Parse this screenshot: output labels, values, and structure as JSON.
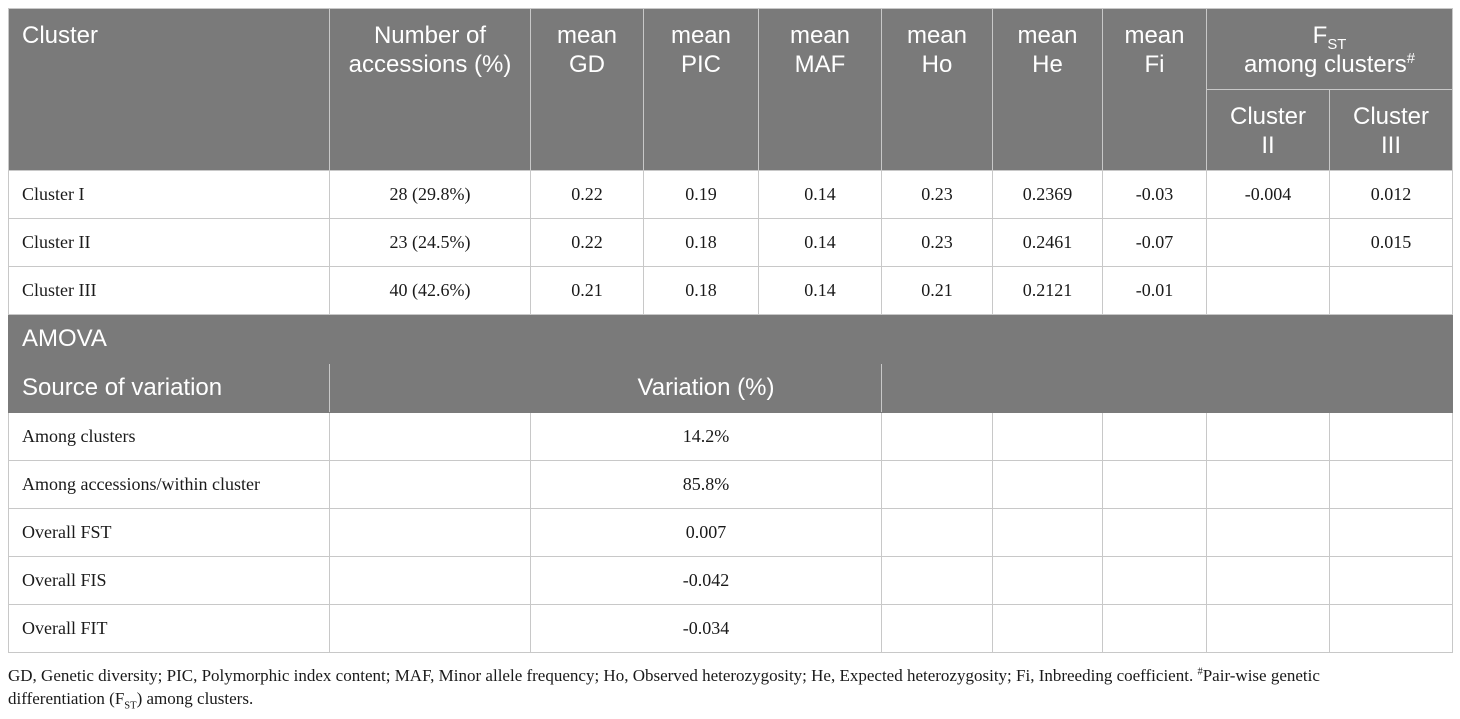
{
  "header": {
    "cluster": "Cluster",
    "accessions_l1": "Number of",
    "accessions_l2": "accessions (%)",
    "gd_l1": "mean",
    "gd_l2": "GD",
    "pic_l1": "mean",
    "pic_l2": "PIC",
    "maf_l1": "mean",
    "maf_l2": "MAF",
    "ho_l1": "mean",
    "ho_l2": "Ho",
    "he_l1": "mean",
    "he_l2": "He",
    "fi_l1": "mean",
    "fi_l2": "Fi",
    "fst_main": "F",
    "fst_sub": "ST",
    "fst_l2": "among clusters",
    "fst_sup": "#",
    "c2_l1": "Cluster",
    "c2_l2": "II",
    "c3_l1": "Cluster",
    "c3_l2": "III"
  },
  "rows": [
    {
      "cluster": "Cluster I",
      "accessions": "28 (29.8%)",
      "gd": "0.22",
      "pic": "0.19",
      "maf": "0.14",
      "ho": "0.23",
      "he": "0.2369",
      "fi": "-0.03",
      "fst2": "-0.004",
      "fst3": "0.012"
    },
    {
      "cluster": "Cluster II",
      "accessions": "23 (24.5%)",
      "gd": "0.22",
      "pic": "0.18",
      "maf": "0.14",
      "ho": "0.23",
      "he": "0.2461",
      "fi": "-0.07",
      "fst2": "",
      "fst3": "0.015"
    },
    {
      "cluster": "Cluster III",
      "accessions": "40 (42.6%)",
      "gd": "0.21",
      "pic": "0.18",
      "maf": "0.14",
      "ho": "0.21",
      "he": "0.2121",
      "fi": "-0.01",
      "fst2": "",
      "fst3": ""
    }
  ],
  "amova": {
    "title": "AMOVA",
    "source_header": "Source of variation",
    "variation_header": "Variation (%)",
    "rows": [
      {
        "source": "Among clusters",
        "variation": "14.2%"
      },
      {
        "source": "Among accessions/within cluster",
        "variation": "85.8%"
      },
      {
        "source": "Overall FST",
        "variation": "0.007"
      },
      {
        "source": "Overall FIS",
        "variation": "-0.042"
      },
      {
        "source": "Overall FIT",
        "variation": "-0.034"
      }
    ]
  },
  "footnote": {
    "text1": "GD, Genetic diversity; PIC, Polymorphic index content; MAF, Minor allele frequency; Ho, Observed heterozygosity; He, Expected heterozygosity; Fi, Inbreeding coefficient. ",
    "sup": "#",
    "text2": "Pair-wise genetic",
    "text3": "differentiation (F",
    "sub": "ST",
    "text4": ") among clusters."
  }
}
